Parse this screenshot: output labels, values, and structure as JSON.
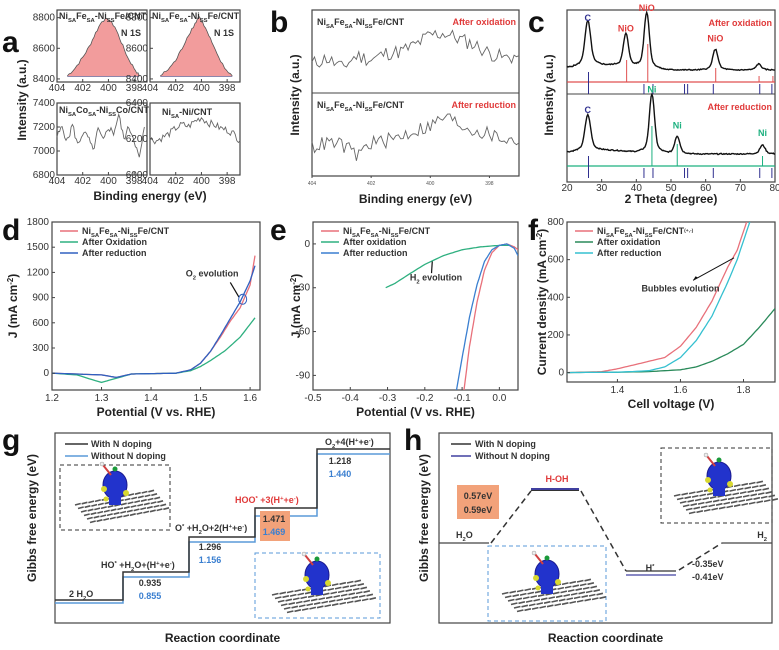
{
  "panels": {
    "a": {
      "letter": "a"
    },
    "b": {
      "letter": "b"
    },
    "c": {
      "letter": "c"
    },
    "d": {
      "letter": "d"
    },
    "e": {
      "letter": "e"
    },
    "f": {
      "letter": "f"
    },
    "g": {
      "letter": "g"
    },
    "h": {
      "letter": "h"
    }
  },
  "chart_data": [
    {
      "id": "a",
      "type": "line",
      "title": "N 1s XPS",
      "xlabel": "Binding energy (eV)",
      "ylabel": "Intensity (a.u.)",
      "subplots": [
        {
          "label": "NiSAFeSA-NiSSFe/CNT",
          "annotation": "N 1S",
          "xlim": [
            404,
            397
          ],
          "ylim": [
            8380,
            8850
          ],
          "yticks": [
            "8400",
            "8600",
            "8800"
          ],
          "xticks": [
            "404",
            "402",
            "400",
            "398"
          ],
          "filled": true,
          "x": [
            403.2,
            402.6,
            402.0,
            401.5,
            401.0,
            400.5,
            400.0,
            399.5,
            399.0,
            398.5,
            398.0,
            397.6
          ],
          "y": [
            8420,
            8470,
            8540,
            8610,
            8700,
            8780,
            8790,
            8740,
            8640,
            8540,
            8470,
            8420
          ]
        },
        {
          "label": "NiSAFeSA-NiSSFe/CNT",
          "annotation": "N 1S",
          "xlim": [
            404,
            397
          ],
          "ylim": [
            8380,
            8850
          ],
          "yticks": [
            "8400",
            "8600",
            "8800"
          ],
          "xticks": [
            "404",
            "402",
            "400",
            "398"
          ],
          "filled": true,
          "x": [
            403.2,
            402.6,
            402.0,
            401.5,
            401.0,
            400.5,
            400.2,
            399.8,
            399.3,
            398.8,
            398.2,
            397.6
          ],
          "y": [
            8420,
            8460,
            8520,
            8600,
            8690,
            8760,
            8810,
            8750,
            8660,
            8560,
            8470,
            8420
          ]
        },
        {
          "label": "NiSACoSA-NiSSCo/CNT",
          "annotation": "",
          "xlim": [
            404,
            397
          ],
          "ylim": [
            6800,
            7400
          ],
          "yticks": [
            "6800",
            "7000",
            "7200",
            "7400"
          ],
          "xticks": [
            "404",
            "402",
            "400",
            "398"
          ],
          "filled": false,
          "x": [
            404,
            403.6,
            403.2,
            402.8,
            402.4,
            402.0,
            401.6,
            401.2,
            400.8,
            400.4,
            400.0,
            399.6,
            399.2,
            398.8,
            398.4,
            398.0,
            397.6,
            397.2
          ],
          "y": [
            7120,
            7200,
            7080,
            7220,
            7050,
            7150,
            7120,
            7000,
            7180,
            7080,
            7200,
            7150,
            7300,
            7100,
            7200,
            7100,
            6930,
            7200
          ]
        },
        {
          "label": "NiSA-Ni/CNT",
          "annotation": "",
          "xlim": [
            404,
            397
          ],
          "ylim": [
            6000,
            6400
          ],
          "yticks": [
            "6000",
            "6200",
            "6400"
          ],
          "xticks": [
            "404",
            "402",
            "400",
            "398"
          ],
          "filled": false,
          "x": [
            404,
            403.5,
            403.0,
            402.5,
            402.0,
            401.5,
            401.0,
            400.5,
            400.0,
            399.5,
            399.0,
            398.5,
            398.0,
            397.5,
            397.0
          ],
          "y": [
            6200,
            6190,
            6210,
            6230,
            6260,
            6280,
            6270,
            6300,
            6320,
            6290,
            6280,
            6260,
            6250,
            6230,
            6190
          ]
        }
      ]
    },
    {
      "id": "b",
      "type": "line",
      "xlabel": "Binding energy (eV)",
      "ylabel": "Intensity (a.u.)",
      "xticks": [
        "404",
        "402",
        "400",
        "398"
      ],
      "xlim": [
        404,
        397
      ],
      "series": [
        {
          "name": "NiSAFeSA-NiSSFe/CNT",
          "annotation": "After oxidation",
          "x": [
            404,
            403.5,
            403.0,
            402.5,
            402.0,
            401.5,
            401.0,
            400.5,
            400.0,
            399.5,
            399.0,
            398.5,
            398.0,
            397.5,
            397.0
          ],
          "y": [
            0.35,
            0.42,
            0.3,
            0.45,
            0.4,
            0.48,
            0.5,
            0.58,
            0.7,
            0.72,
            0.65,
            0.58,
            0.48,
            0.42,
            0.45
          ]
        },
        {
          "name": "NiSAFeSA-NiSSFe/CNT",
          "annotation": "After reduction",
          "x": [
            404,
            403.5,
            403.0,
            402.5,
            402.0,
            401.5,
            401.0,
            400.5,
            400.0,
            399.5,
            399.0,
            398.5,
            398.0,
            397.5,
            397.0
          ],
          "y": [
            0.35,
            0.4,
            0.38,
            0.25,
            0.4,
            0.42,
            0.48,
            0.55,
            0.6,
            0.72,
            0.62,
            0.55,
            0.5,
            0.45,
            0.4
          ]
        }
      ]
    },
    {
      "id": "c",
      "type": "line",
      "xlabel": "2 Theta (degree)",
      "ylabel": "Intensity (a.u.)",
      "xlim": [
        20,
        80
      ],
      "xticks": [
        "20",
        "30",
        "40",
        "50",
        "60",
        "70",
        "80"
      ],
      "series": [
        {
          "name": "After oxidation",
          "peaks": [
            {
              "x": 26,
              "h": 0.75,
              "label": "C"
            },
            {
              "x": 37,
              "h": 0.55,
              "label": "NiO"
            },
            {
              "x": 43,
              "h": 0.95,
              "label": "NiO"
            },
            {
              "x": 62.8,
              "h": 0.35,
              "label": "NiO"
            },
            {
              "x": 75.3,
              "h": 0.1,
              "label": ""
            }
          ]
        },
        {
          "name": "After reduction",
          "peaks": [
            {
              "x": 26,
              "h": 0.6,
              "label": "C"
            },
            {
              "x": 44.5,
              "h": 1.0,
              "label": "Ni"
            },
            {
              "x": 51.8,
              "h": 0.3,
              "label": "Ni"
            },
            {
              "x": 76.4,
              "h": 0.15,
              "label": "Ni"
            }
          ]
        }
      ],
      "reference_lines": {
        "C": [
          26.2,
          42.2,
          44.8,
          53.9,
          54.8,
          62.2,
          75.6,
          79.1
        ],
        "NiO": [
          37.2,
          43.3,
          62.9,
          75.4,
          79.4
        ],
        "Ni": [
          44.5,
          51.8,
          76.4
        ]
      }
    },
    {
      "id": "d",
      "type": "line",
      "xlabel": "Potential (V vs. RHE)",
      "ylabel": "J (mA cm-2)",
      "xlim": [
        1.2,
        1.62
      ],
      "ylim": [
        -200,
        1800
      ],
      "xticks": [
        "1.2",
        "1.3",
        "1.4",
        "1.5",
        "1.6"
      ],
      "yticks": [
        "0",
        "300",
        "600",
        "900",
        "1200",
        "1500",
        "1800"
      ],
      "annotation": "O2 evolution",
      "series": [
        {
          "name": "NiSAFeSA-NiSSFe/CNT",
          "color": "#e8707a",
          "x": [
            1.2,
            1.25,
            1.3,
            1.33,
            1.36,
            1.4,
            1.45,
            1.48,
            1.5,
            1.52,
            1.54,
            1.56,
            1.58,
            1.6,
            1.61
          ],
          "y": [
            0,
            -10,
            -20,
            -50,
            -10,
            -5,
            0,
            40,
            120,
            260,
            430,
            620,
            780,
            1050,
            1400
          ]
        },
        {
          "name": "After Oxidation",
          "color": "#2fb080",
          "x": [
            1.2,
            1.25,
            1.3,
            1.33,
            1.36,
            1.4,
            1.45,
            1.48,
            1.5,
            1.52,
            1.55,
            1.58,
            1.61
          ],
          "y": [
            0,
            -20,
            -110,
            -60,
            -10,
            -5,
            0,
            30,
            80,
            150,
            270,
            430,
            660
          ]
        },
        {
          "name": "After reduction",
          "color": "#3060c0",
          "x": [
            1.2,
            1.25,
            1.3,
            1.33,
            1.36,
            1.4,
            1.45,
            1.48,
            1.5,
            1.52,
            1.54,
            1.56,
            1.58,
            1.6,
            1.61
          ],
          "y": [
            0,
            -10,
            -20,
            -50,
            -10,
            -5,
            0,
            40,
            120,
            260,
            450,
            650,
            850,
            1100,
            1280
          ]
        }
      ]
    },
    {
      "id": "e",
      "type": "line",
      "xlabel": "Potential (V vs. RHE)",
      "ylabel": "J (mA cm-2)",
      "xlim": [
        -0.5,
        0.05
      ],
      "ylim": [
        -100,
        15
      ],
      "xticks": [
        "-0.5",
        "-0.4",
        "-0.3",
        "-0.2",
        "-0.1",
        "0.0"
      ],
      "yticks": [
        "0",
        "-30",
        "-60",
        "-90"
      ],
      "annotation": "H2 evolution",
      "series": [
        {
          "name": "NiSAFeSA-NiSSFe/CNT",
          "color": "#e8707a",
          "x": [
            -0.095,
            -0.08,
            -0.06,
            -0.04,
            -0.02,
            0.0,
            0.02,
            0.04,
            0.05
          ],
          "y": [
            -100,
            -70,
            -40,
            -18,
            -6,
            -1,
            0,
            -2,
            -4
          ]
        },
        {
          "name": "After oxidation",
          "color": "#2fb080",
          "x": [
            -0.305,
            -0.28,
            -0.25,
            -0.2,
            -0.15,
            -0.1,
            -0.05,
            0.0,
            0.03
          ],
          "y": [
            -30,
            -27,
            -22,
            -14,
            -8,
            -4,
            -2,
            -1,
            -1
          ]
        },
        {
          "name": "After reduction",
          "color": "#3a7fd0",
          "x": [
            -0.115,
            -0.1,
            -0.08,
            -0.06,
            -0.04,
            -0.02,
            0.0,
            0.02,
            0.04,
            0.05
          ],
          "y": [
            -100,
            -78,
            -50,
            -28,
            -12,
            -4,
            -1,
            0,
            -3,
            -8
          ]
        }
      ]
    },
    {
      "id": "f",
      "type": "line",
      "xlabel": "Cell voltage (V)",
      "ylabel": "Current density (mA cm-2)",
      "xlim": [
        1.24,
        1.9
      ],
      "ylim": [
        -50,
        800
      ],
      "xticks": [
        "1.4",
        "1.6",
        "1.8"
      ],
      "yticks": [
        "0",
        "200",
        "400",
        "600",
        "800"
      ],
      "annotation": "Bubbles evolution",
      "series": [
        {
          "name": "NiSAFeSA-NiSSFe/CNT(+,-)",
          "color": "#e8707a",
          "x": [
            1.24,
            1.35,
            1.4,
            1.45,
            1.5,
            1.55,
            1.6,
            1.65,
            1.7,
            1.75,
            1.78,
            1.81
          ],
          "y": [
            0,
            5,
            20,
            40,
            60,
            80,
            140,
            240,
            380,
            560,
            650,
            800
          ]
        },
        {
          "name": "After oxidation",
          "color": "#2a8a5a",
          "x": [
            1.24,
            1.4,
            1.5,
            1.6,
            1.65,
            1.7,
            1.75,
            1.8,
            1.85,
            1.9
          ],
          "y": [
            0,
            2,
            5,
            15,
            30,
            60,
            100,
            150,
            240,
            340
          ]
        },
        {
          "name": "After reduction",
          "color": "#35c0d0",
          "x": [
            1.24,
            1.4,
            1.5,
            1.55,
            1.6,
            1.65,
            1.7,
            1.75,
            1.78,
            1.82
          ],
          "y": [
            0,
            2,
            10,
            30,
            80,
            170,
            300,
            480,
            600,
            800
          ]
        }
      ]
    },
    {
      "id": "g",
      "type": "line",
      "xlabel": "Reaction coordinate",
      "ylabel": "Gibbs free energy (eV)",
      "legend": [
        "With N doping",
        "Without N doping"
      ],
      "steps": [
        {
          "label": "2 H2O",
          "with_N": null,
          "without_N": null
        },
        {
          "label": "HO* +H2O+(H+ +e-)",
          "with_N": "0.935",
          "without_N": "0.855"
        },
        {
          "label": "O* +H2O+2(H+ +e-)",
          "with_N": "1.296",
          "without_N": "1.156"
        },
        {
          "label": "HOO* +3(H+ +e-)",
          "with_N": "1.471",
          "without_N": "1.469",
          "highlight": true
        },
        {
          "label": "O2+4(H+ +e-)",
          "with_N": "1.218",
          "without_N": "1.440"
        }
      ]
    },
    {
      "id": "h",
      "type": "line",
      "xlabel": "Reaction coordinate",
      "ylabel": "Gibbs free energy (eV)",
      "legend": [
        "With N doping",
        "Without N doping"
      ],
      "states": [
        "H2O",
        "H-OH",
        "H*",
        "H2"
      ],
      "barrier": {
        "with_N": "0.57eV",
        "without_N": "0.59eV"
      },
      "adsorption": {
        "with_N": "-0.35eV",
        "without_N": "-0.41eV"
      }
    }
  ]
}
